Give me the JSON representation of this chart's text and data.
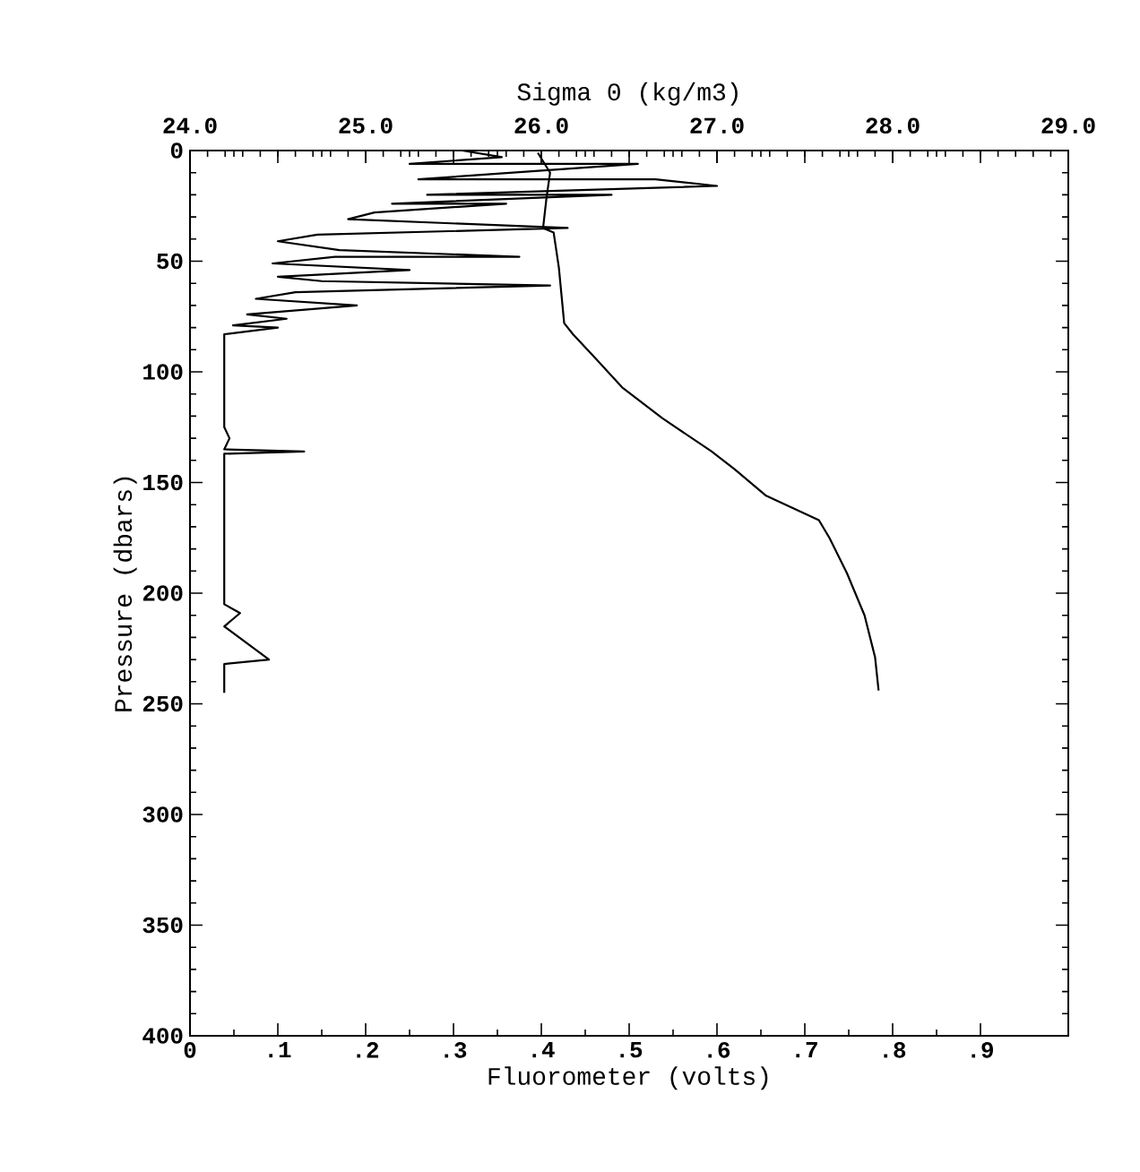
{
  "chart_data": {
    "type": "line",
    "xlabel": "Fluorometer (volts)",
    "x2label": "Sigma 0 (kg/m3)",
    "ylabel": "Pressure (dbars)",
    "xlim": [
      0,
      1.0
    ],
    "xticks": [
      0,
      {
        "value": 0.1,
        "label": ".1"
      },
      {
        "value": 0.2,
        "label": ".2"
      },
      {
        "value": 0.3,
        "label": ".3"
      },
      {
        "value": 0.4,
        "label": ".4"
      },
      {
        "value": 0.5,
        "label": ".5"
      },
      {
        "value": 0.6,
        "label": ".6"
      },
      {
        "value": 0.7,
        "label": ".7"
      },
      {
        "value": 0.8,
        "label": ".8"
      },
      {
        "value": 0.9,
        "label": ".9"
      }
    ],
    "x2lim": [
      24,
      29
    ],
    "x2ticks": [
      {
        "value": 24,
        "label": "24.0"
      },
      {
        "value": 25,
        "label": "25.0"
      },
      {
        "value": 26,
        "label": "26.0"
      },
      {
        "value": 27,
        "label": "27.0"
      },
      {
        "value": 28,
        "label": "28.0"
      },
      {
        "value": 29,
        "label": "29.0"
      }
    ],
    "ylim": [
      400,
      0
    ],
    "yticks": [
      0,
      50,
      100,
      150,
      200,
      250,
      300,
      350,
      400
    ],
    "marker": "none",
    "line_style": "solid",
    "series": [
      {
        "color": "#000000",
        "x": [
          0.31,
          0.355,
          0.25,
          0.51,
          0.26,
          0.53,
          0.6,
          0.27,
          0.48,
          0.23,
          0.36,
          0.21,
          0.18,
          0.43,
          0.145,
          0.1,
          0.17,
          0.375,
          0.165,
          0.094,
          0.25,
          0.1,
          0.15,
          0.41,
          0.12,
          0.075,
          0.19,
          0.065,
          0.11,
          0.049,
          0.1,
          0.039,
          0.039,
          0.045,
          0.039,
          0.13,
          0.039,
          0.039,
          0.057,
          0.039,
          0.09,
          0.039,
          0.039
        ],
        "values": [
          0,
          3,
          6,
          6,
          13,
          13,
          16,
          20,
          20,
          24,
          24,
          28,
          31,
          35,
          38,
          41,
          45,
          48,
          48,
          51,
          54,
          57,
          59,
          61,
          64,
          67,
          70,
          74,
          76,
          79,
          80,
          83,
          125,
          130,
          135,
          136,
          137,
          205,
          209,
          215,
          230,
          232,
          245
        ]
      },
      {
        "color": "#000000",
        "axis": "x2",
        "x": [
          25.98,
          26.05,
          26.03,
          26.01,
          26.07,
          26.1,
          26.13,
          26.18,
          26.31,
          26.46,
          26.69,
          26.97,
          27.1,
          27.28,
          27.58,
          27.64,
          27.74,
          27.84,
          27.9,
          27.92
        ],
        "values": [
          1,
          10,
          21,
          35,
          37,
          53,
          78,
          83,
          94,
          107,
          121,
          136,
          144,
          156,
          167,
          175,
          191,
          210,
          229,
          244
        ]
      }
    ]
  }
}
